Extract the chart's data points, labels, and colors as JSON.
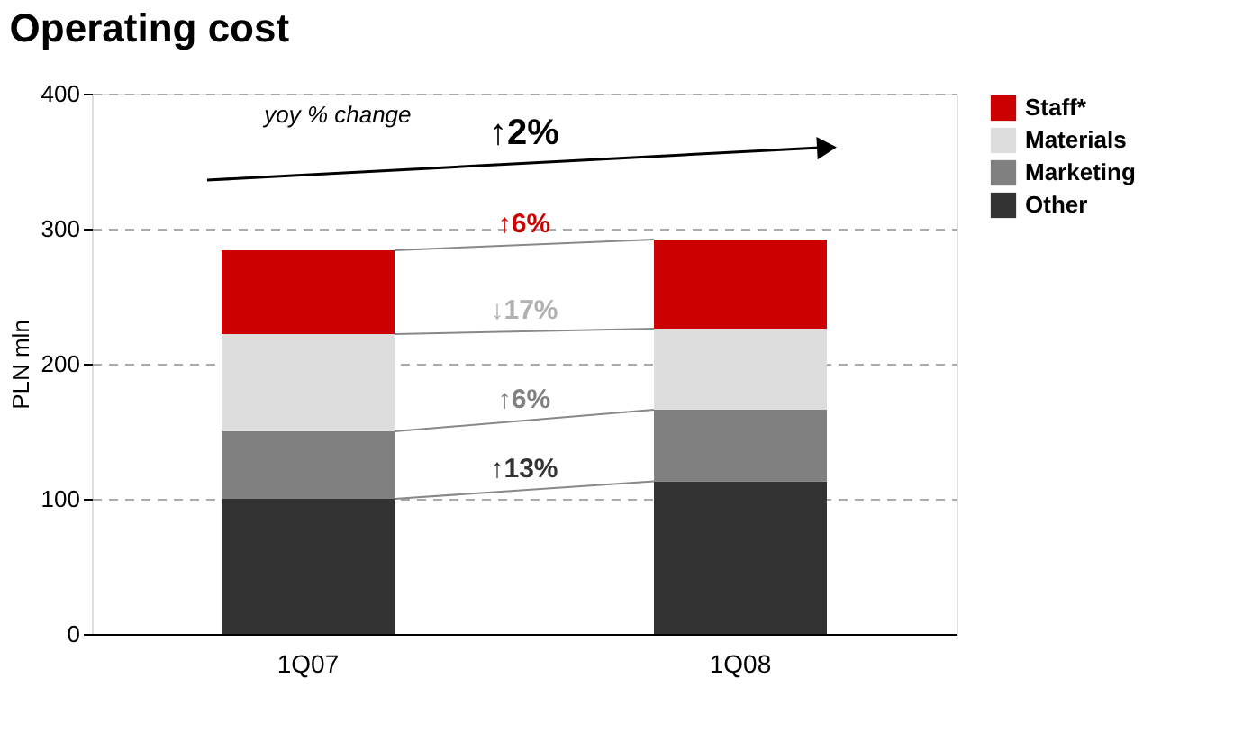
{
  "chart_data": {
    "type": "bar",
    "title": "Operating cost",
    "ylabel": "PLN mln",
    "stacked": true,
    "categories": [
      "1Q07",
      "1Q08"
    ],
    "series": [
      {
        "name": "Other",
        "color": "#333333",
        "values": [
          100,
          113
        ]
      },
      {
        "name": "Marketing",
        "color": "#808080",
        "values": [
          50,
          53
        ]
      },
      {
        "name": "Materials",
        "color": "#dddddd",
        "values": [
          72,
          60
        ]
      },
      {
        "name": "Staff*",
        "color": "#cc0000",
        "values": [
          62,
          66
        ]
      }
    ],
    "ylim": [
      0,
      400
    ],
    "yticks": [
      0,
      100,
      200,
      300,
      400
    ],
    "grid": "y",
    "legend": "right",
    "annotations": [
      "yoy % change",
      "↑2%",
      "↑6%",
      "↓17%",
      "↑6%",
      "↑13%"
    ]
  }
}
